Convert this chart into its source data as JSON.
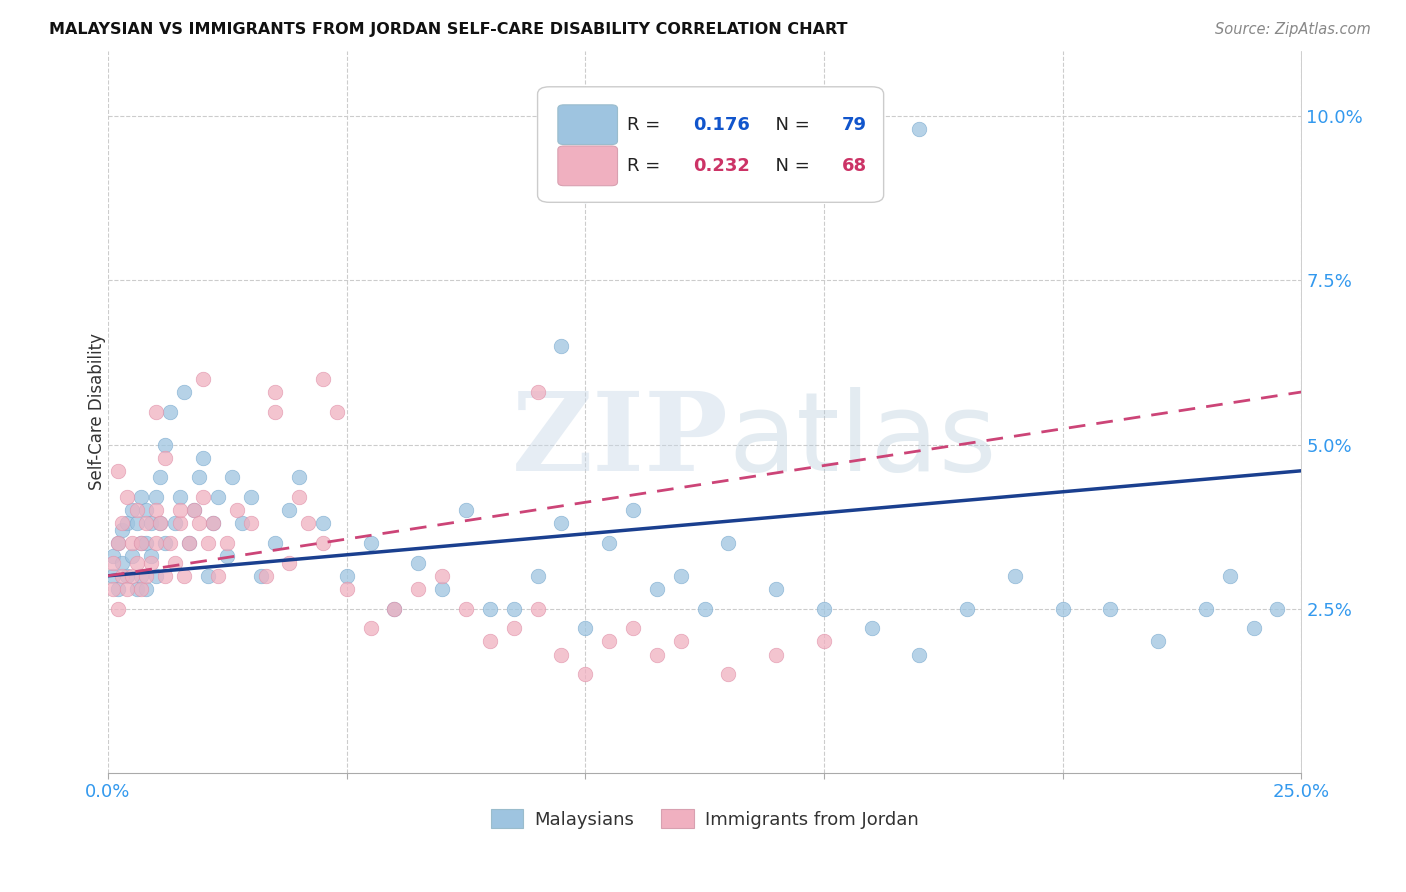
{
  "title": "MALAYSIAN VS IMMIGRANTS FROM JORDAN SELF-CARE DISABILITY CORRELATION CHART",
  "source": "Source: ZipAtlas.com",
  "ylabel": "Self-Care Disability",
  "xlim": [
    0.0,
    0.25
  ],
  "ylim": [
    0.0,
    0.11
  ],
  "xtick_positions": [
    0.0,
    0.05,
    0.1,
    0.15,
    0.2,
    0.25
  ],
  "xtick_labels": [
    "0.0%",
    "",
    "",
    "",
    "",
    "25.0%"
  ],
  "ytick_positions": [
    0.025,
    0.05,
    0.075,
    0.1
  ],
  "ytick_labels": [
    "2.5%",
    "5.0%",
    "7.5%",
    "10.0%"
  ],
  "legend1_label": "Malaysians",
  "legend2_label": "Immigrants from Jordan",
  "R1": 0.176,
  "N1": 79,
  "R2": 0.232,
  "N2": 68,
  "color_blue": "#9ec4e0",
  "color_pink": "#f0b0c0",
  "line_blue": "#1a3f8f",
  "line_pink": "#cc4477",
  "blue_line_y0": 0.03,
  "blue_line_y1": 0.046,
  "pink_line_y0": 0.03,
  "pink_line_y1": 0.058,
  "blue_x": [
    0.001,
    0.001,
    0.002,
    0.002,
    0.003,
    0.003,
    0.004,
    0.004,
    0.005,
    0.005,
    0.006,
    0.006,
    0.007,
    0.007,
    0.007,
    0.008,
    0.008,
    0.008,
    0.009,
    0.009,
    0.01,
    0.01,
    0.011,
    0.011,
    0.012,
    0.012,
    0.013,
    0.014,
    0.015,
    0.016,
    0.017,
    0.018,
    0.019,
    0.02,
    0.021,
    0.022,
    0.023,
    0.025,
    0.026,
    0.028,
    0.03,
    0.032,
    0.035,
    0.038,
    0.04,
    0.045,
    0.05,
    0.055,
    0.06,
    0.065,
    0.07,
    0.075,
    0.08,
    0.085,
    0.09,
    0.095,
    0.1,
    0.105,
    0.11,
    0.115,
    0.12,
    0.125,
    0.13,
    0.14,
    0.15,
    0.16,
    0.17,
    0.18,
    0.19,
    0.2,
    0.21,
    0.22,
    0.23,
    0.235,
    0.24,
    0.245,
    0.1,
    0.17,
    0.095
  ],
  "blue_y": [
    0.03,
    0.033,
    0.028,
    0.035,
    0.032,
    0.037,
    0.03,
    0.038,
    0.033,
    0.04,
    0.028,
    0.038,
    0.035,
    0.03,
    0.042,
    0.028,
    0.035,
    0.04,
    0.033,
    0.038,
    0.03,
    0.042,
    0.038,
    0.045,
    0.035,
    0.05,
    0.055,
    0.038,
    0.042,
    0.058,
    0.035,
    0.04,
    0.045,
    0.048,
    0.03,
    0.038,
    0.042,
    0.033,
    0.045,
    0.038,
    0.042,
    0.03,
    0.035,
    0.04,
    0.045,
    0.038,
    0.03,
    0.035,
    0.025,
    0.032,
    0.028,
    0.04,
    0.025,
    0.025,
    0.03,
    0.038,
    0.022,
    0.035,
    0.04,
    0.028,
    0.03,
    0.025,
    0.035,
    0.028,
    0.025,
    0.022,
    0.018,
    0.025,
    0.03,
    0.025,
    0.025,
    0.02,
    0.025,
    0.03,
    0.022,
    0.025,
    0.088,
    0.098,
    0.065
  ],
  "pink_x": [
    0.001,
    0.001,
    0.002,
    0.002,
    0.003,
    0.003,
    0.004,
    0.004,
    0.005,
    0.005,
    0.006,
    0.006,
    0.007,
    0.007,
    0.008,
    0.008,
    0.009,
    0.01,
    0.01,
    0.011,
    0.012,
    0.013,
    0.014,
    0.015,
    0.016,
    0.017,
    0.018,
    0.019,
    0.02,
    0.021,
    0.022,
    0.023,
    0.025,
    0.027,
    0.03,
    0.033,
    0.035,
    0.038,
    0.04,
    0.042,
    0.045,
    0.05,
    0.055,
    0.06,
    0.065,
    0.07,
    0.075,
    0.08,
    0.085,
    0.09,
    0.095,
    0.1,
    0.105,
    0.11,
    0.115,
    0.12,
    0.13,
    0.14,
    0.15,
    0.002,
    0.09,
    0.045,
    0.035,
    0.048,
    0.02,
    0.015,
    0.012,
    0.01
  ],
  "pink_y": [
    0.028,
    0.032,
    0.025,
    0.035,
    0.03,
    0.038,
    0.028,
    0.042,
    0.03,
    0.035,
    0.032,
    0.04,
    0.028,
    0.035,
    0.03,
    0.038,
    0.032,
    0.035,
    0.04,
    0.038,
    0.03,
    0.035,
    0.032,
    0.038,
    0.03,
    0.035,
    0.04,
    0.038,
    0.042,
    0.035,
    0.038,
    0.03,
    0.035,
    0.04,
    0.038,
    0.03,
    0.055,
    0.032,
    0.042,
    0.038,
    0.035,
    0.028,
    0.022,
    0.025,
    0.028,
    0.03,
    0.025,
    0.02,
    0.022,
    0.025,
    0.018,
    0.015,
    0.02,
    0.022,
    0.018,
    0.02,
    0.015,
    0.018,
    0.02,
    0.046,
    0.058,
    0.06,
    0.058,
    0.055,
    0.06,
    0.04,
    0.048,
    0.055
  ]
}
